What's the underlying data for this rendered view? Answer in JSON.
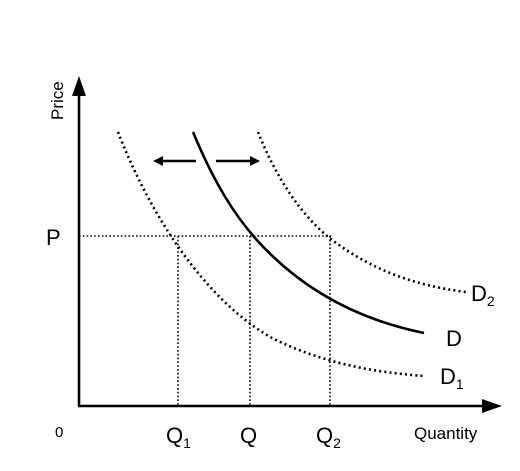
{
  "axes": {
    "y_label": "Price",
    "x_label": "Quantity",
    "origin_label": "0"
  },
  "price_label": "P",
  "quantity_labels": {
    "q1_main": "Q",
    "q1_sub": "1",
    "q": "Q",
    "q2_main": "Q",
    "q2_sub": "2"
  },
  "curve_labels": {
    "d": "D",
    "d1_main": "D",
    "d1_sub": "1",
    "d2_main": "D",
    "d2_sub": "2"
  },
  "shift_arrows": [
    "left",
    "right"
  ],
  "colors": {
    "ink": "#000000",
    "background": "#ffffff"
  }
}
